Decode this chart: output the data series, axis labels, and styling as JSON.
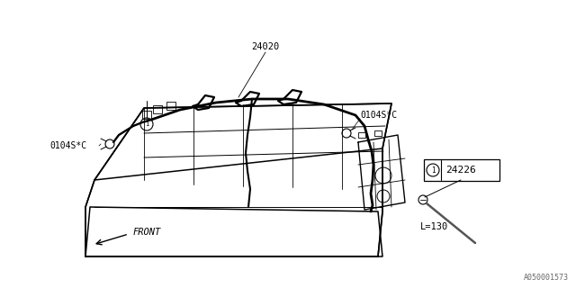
{
  "bg_color": "#ffffff",
  "line_color": "#000000",
  "diagram_color": "#333333",
  "watermark": "A050001573",
  "label_24020": "24020",
  "label_0104SC_left": "0104S*C",
  "label_0104SC_right": "0104S*C",
  "label_24226": "24226",
  "label_L130": "L=130",
  "label_FRONT": "FRONT",
  "callout_circle_num": "1"
}
